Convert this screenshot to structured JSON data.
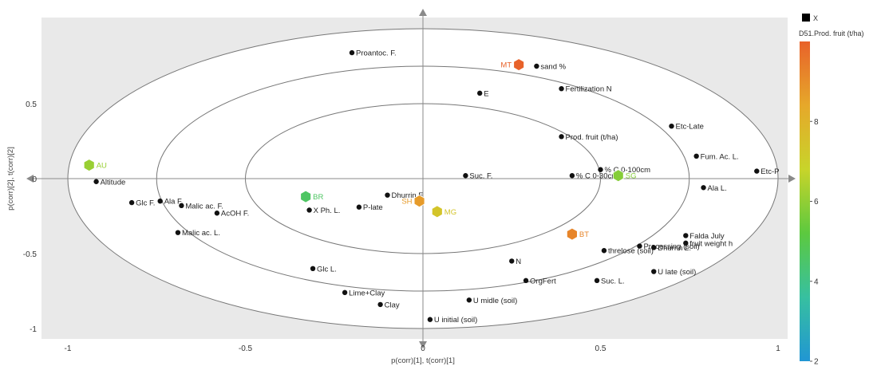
{
  "chart_data": {
    "type": "scatter",
    "title": "",
    "xlabel": "p(corr)[1], t(corr)[1]",
    "ylabel": "p(corr)[2], t(corr)[2]",
    "xlim": [
      -1.0,
      1.0
    ],
    "ylim": [
      -1.0,
      0.8
    ],
    "xticks": [
      -1,
      -0.5,
      0,
      0.5,
      1
    ],
    "xtick_labels": [
      "-1",
      "-0.5",
      "0",
      "0.5",
      "1"
    ],
    "yticks": [
      -1,
      -0.5,
      0,
      0.5
    ],
    "ytick_labels": [
      "-1",
      "-0.5",
      "0",
      "0.5"
    ],
    "ellipses": [
      {
        "rx": 1.0,
        "ry": 1.0
      },
      {
        "rx": 0.75,
        "ry": 0.75
      },
      {
        "rx": 0.5,
        "ry": 0.5
      }
    ],
    "grid": false,
    "legend": {
      "placement": "right",
      "marker_label": "X",
      "color_title": "D51.Prod. fruit (t/ha)",
      "color_ticks": [
        2,
        4,
        6,
        8
      ],
      "range": [
        2,
        10
      ],
      "colors": [
        "#2196d3",
        "#37c0a0",
        "#5cc93f",
        "#c8d42a",
        "#e6a82a",
        "#e8622a"
      ]
    },
    "loadings": [
      {
        "label": "Proantoc. F.",
        "x": -0.2,
        "y": 0.84
      },
      {
        "label": "sand %",
        "x": 0.32,
        "y": 0.75
      },
      {
        "label": "Fertilization N",
        "x": 0.39,
        "y": 0.6
      },
      {
        "label": "E",
        "x": 0.16,
        "y": 0.57
      },
      {
        "label": "Etc-Late",
        "x": 0.7,
        "y": 0.35
      },
      {
        "label": "Prod. fruit (t/ha)",
        "x": 0.39,
        "y": 0.28
      },
      {
        "label": "Fum. Ac. L.",
        "x": 0.77,
        "y": 0.15
      },
      {
        "label": "% C 0-100cm",
        "x": 0.5,
        "y": 0.06
      },
      {
        "label": "Etc-P",
        "x": 0.94,
        "y": 0.05
      },
      {
        "label": "% C 0-30cm",
        "x": 0.42,
        "y": 0.02
      },
      {
        "label": "Suc. F.",
        "x": 0.12,
        "y": 0.02
      },
      {
        "label": "Altitude",
        "x": -0.92,
        "y": -0.02
      },
      {
        "label": "Ala L.",
        "x": 0.79,
        "y": -0.06
      },
      {
        "label": "Dhurrin F.",
        "x": -0.1,
        "y": -0.11
      },
      {
        "label": "Glc F.",
        "x": -0.82,
        "y": -0.16
      },
      {
        "label": "Ala F.",
        "x": -0.74,
        "y": -0.15
      },
      {
        "label": "Malic ac. F.",
        "x": -0.68,
        "y": -0.18
      },
      {
        "label": "P-late",
        "x": -0.18,
        "y": -0.19
      },
      {
        "label": "X Ph. L.",
        "x": -0.32,
        "y": -0.21
      },
      {
        "label": "AcOH F.",
        "x": -0.58,
        "y": -0.23
      },
      {
        "label": "Malic ac. L.",
        "x": -0.69,
        "y": -0.36
      },
      {
        "label": "Falda July",
        "x": 0.74,
        "y": -0.38
      },
      {
        "label": "fruit weight h",
        "x": 0.74,
        "y": -0.43
      },
      {
        "label": "Processing (soil)",
        "x": 0.61,
        "y": -0.45
      },
      {
        "label": "Dhurrin L.",
        "x": 0.65,
        "y": -0.46
      },
      {
        "label": "threlose (soil)",
        "x": 0.51,
        "y": -0.48
      },
      {
        "label": "N",
        "x": 0.25,
        "y": -0.55
      },
      {
        "label": "Glc L.",
        "x": -0.31,
        "y": -0.6
      },
      {
        "label": "U late (soil)",
        "x": 0.65,
        "y": -0.62
      },
      {
        "label": "OrgFert",
        "x": 0.29,
        "y": -0.68
      },
      {
        "label": "Suc. L.",
        "x": 0.49,
        "y": -0.68
      },
      {
        "label": "Lime+Clay",
        "x": -0.22,
        "y": -0.76
      },
      {
        "label": "U midle (soil)",
        "x": 0.13,
        "y": -0.81
      },
      {
        "label": "Clay",
        "x": -0.12,
        "y": -0.84
      },
      {
        "label": "U initial (soil)",
        "x": 0.02,
        "y": -0.94
      }
    ],
    "scores": [
      {
        "label": "MT",
        "x": 0.27,
        "y": 0.76,
        "value": 10.0
      },
      {
        "label": "AU",
        "x": -0.94,
        "y": 0.09,
        "value": 6.1
      },
      {
        "label": "SG",
        "x": 0.55,
        "y": 0.02,
        "value": 5.8
      },
      {
        "label": "BR",
        "x": -0.33,
        "y": -0.12,
        "value": 4.6
      },
      {
        "label": "SH",
        "x": -0.01,
        "y": -0.15,
        "value": 8.7
      },
      {
        "label": "MG",
        "x": 0.04,
        "y": -0.22,
        "value": 7.4
      },
      {
        "label": "BT",
        "x": 0.42,
        "y": -0.37,
        "value": 9.2
      }
    ]
  }
}
